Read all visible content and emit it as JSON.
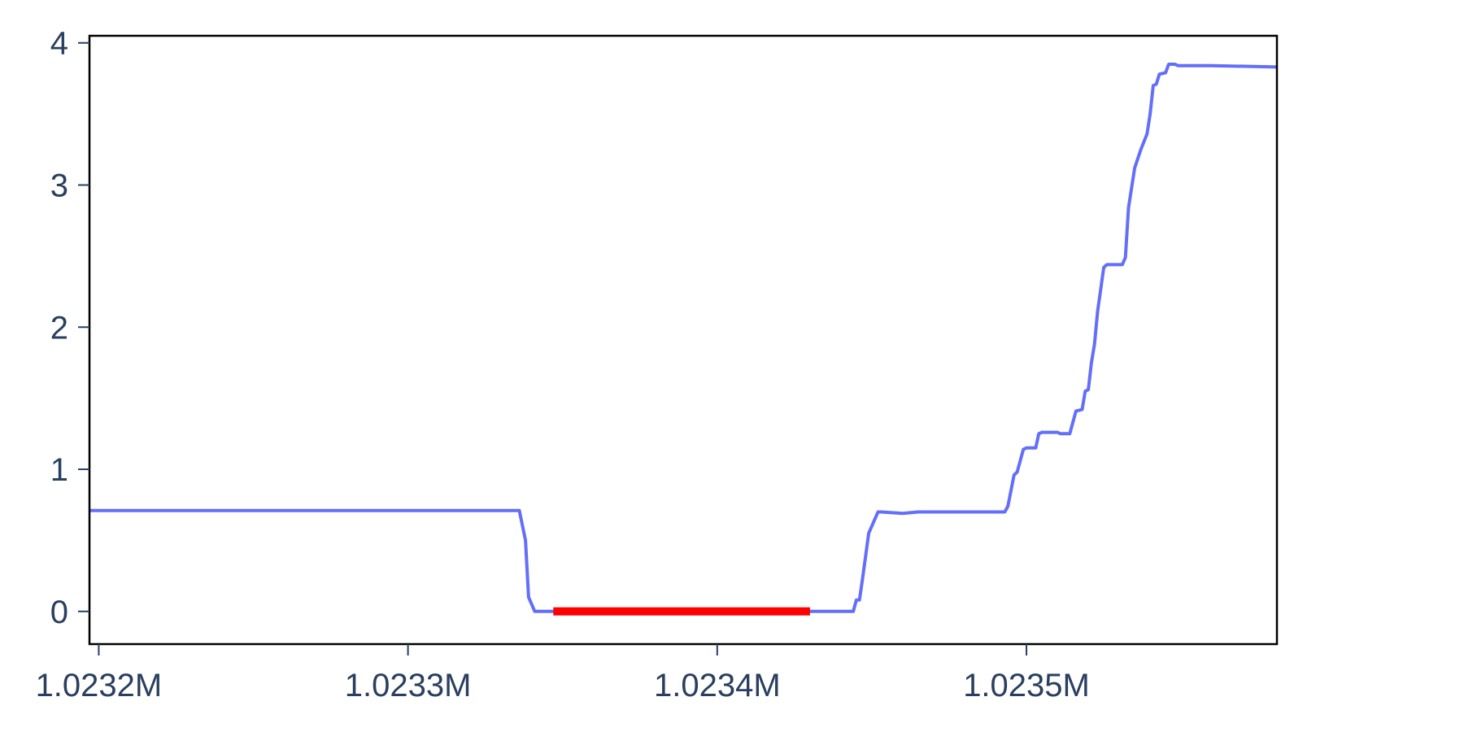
{
  "chart_data": {
    "type": "line",
    "title": "",
    "xlabel": "",
    "ylabel": "",
    "xlim": [
      1023197,
      1023581
    ],
    "ylim": [
      -0.23,
      4.05
    ],
    "grid": false,
    "x_ticks": [
      {
        "value": 1023200,
        "label": "1.0232M"
      },
      {
        "value": 1023300,
        "label": "1.0233M"
      },
      {
        "value": 1023400,
        "label": "1.0234M"
      },
      {
        "value": 1023500,
        "label": "1.0235M"
      }
    ],
    "y_ticks": [
      {
        "value": 0,
        "label": "0"
      },
      {
        "value": 1,
        "label": "1"
      },
      {
        "value": 2,
        "label": "2"
      },
      {
        "value": 3,
        "label": "3"
      },
      {
        "value": 4,
        "label": "4"
      }
    ],
    "colors": {
      "line": "#636efa",
      "highlight": "#ff0000",
      "axis_text": "#2a3f5f",
      "frame": "#000000"
    },
    "series": [
      {
        "x": [
          1023197,
          1023336,
          1023338,
          1023339,
          1023341,
          1023347,
          1023353,
          1023355,
          1023360,
          1023365,
          1023370,
          1023380,
          1023390,
          1023400,
          1023410,
          1023420,
          1023430,
          1023440,
          1023444,
          1023445,
          1023446,
          1023447,
          1023449,
          1023452,
          1023453,
          1023460,
          1023465,
          1023470,
          1023480,
          1023493,
          1023494,
          1023496,
          1023497,
          1023499,
          1023500,
          1023503,
          1023504,
          1023505,
          1023506,
          1023507,
          1023510,
          1023511,
          1023512,
          1023514,
          1023516,
          1023518,
          1023519,
          1023520,
          1023521,
          1023522,
          1023523,
          1023525,
          1023526,
          1023527,
          1023528,
          1023531,
          1023532,
          1023533,
          1023535,
          1023537,
          1023539,
          1023540,
          1023541,
          1023542,
          1023543,
          1023545,
          1023546,
          1023547,
          1023548,
          1023549,
          1023550,
          1023551,
          1023552,
          1023557,
          1023558,
          1023560,
          1023581
        ],
        "y": [
          0.71,
          0.71,
          0.5,
          0.1,
          0,
          0,
          0,
          0,
          0,
          0,
          0,
          0,
          0,
          0,
          0,
          0,
          0,
          0,
          0,
          0.08,
          0.08,
          0.23,
          0.55,
          0.7,
          0.7,
          0.69,
          0.7,
          0.7,
          0.7,
          0.7,
          0.74,
          0.96,
          0.98,
          1.14,
          1.15,
          1.15,
          1.25,
          1.26,
          1.26,
          1.26,
          1.26,
          1.25,
          1.25,
          1.25,
          1.41,
          1.42,
          1.55,
          1.56,
          1.75,
          1.88,
          2.11,
          2.42,
          2.44,
          2.44,
          2.44,
          2.44,
          2.49,
          2.84,
          3.12,
          3.25,
          3.36,
          3.5,
          3.7,
          3.71,
          3.78,
          3.79,
          3.85,
          3.85,
          3.85,
          3.84,
          3.84,
          3.84,
          3.84,
          3.84,
          3.84,
          3.84,
          3.83
        ]
      },
      {
        "x": [
          1023347,
          1023430
        ],
        "y": [
          0,
          0
        ]
      }
    ]
  }
}
